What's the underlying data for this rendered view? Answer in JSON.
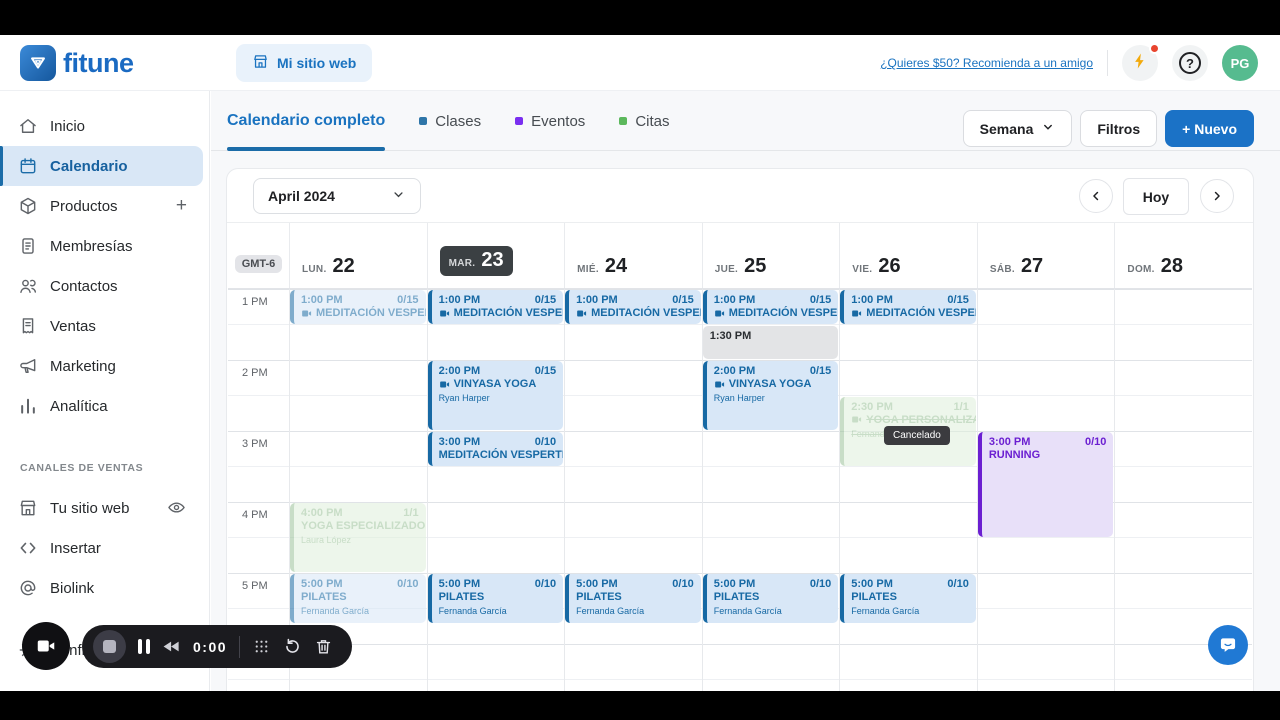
{
  "header": {
    "brand": "fitune",
    "my_site_button": "Mi sitio web",
    "referral_link": "¿Quieres $50? Recomienda a un amigo",
    "avatar": "PG"
  },
  "sidebar": {
    "items": [
      {
        "label": "Inicio",
        "icon": "home"
      },
      {
        "label": "Calendario",
        "icon": "calendar",
        "active": true
      },
      {
        "label": "Productos",
        "icon": "cube",
        "trailing": "+"
      },
      {
        "label": "Membresías",
        "icon": "membership-card"
      },
      {
        "label": "Contactos",
        "icon": "contacts"
      },
      {
        "label": "Ventas",
        "icon": "receipt"
      },
      {
        "label": "Marketing",
        "icon": "megaphone"
      },
      {
        "label": "Analítica",
        "icon": "bar-chart"
      }
    ],
    "section": "CANALES DE VENTAS",
    "channels": [
      {
        "label": "Tu sitio web",
        "icon": "storefront",
        "trailing_icon": "eye"
      },
      {
        "label": "Insertar",
        "icon": "code"
      },
      {
        "label": "Biolink",
        "icon": "at-sign"
      },
      {
        "label": "Configuración",
        "icon": "gear",
        "gap_before": true
      }
    ]
  },
  "tabs": [
    {
      "label": "Calendario completo",
      "active": true
    },
    {
      "label": "Clases",
      "dot_color": "#2e75a8"
    },
    {
      "label": "Eventos",
      "dot_color": "#7a2ef0"
    },
    {
      "label": "Citas",
      "dot_color": "#5cb85c"
    }
  ],
  "toolbar": {
    "view": "Semana",
    "filters": "Filtros",
    "new": "+ Nuevo"
  },
  "calendar": {
    "month": "April 2024",
    "today": "Hoy",
    "timezone": "GMT-6",
    "days": [
      {
        "abbr": "LUN.",
        "num": "22"
      },
      {
        "abbr": "MAR.",
        "num": "23",
        "today": true
      },
      {
        "abbr": "MIÉ.",
        "num": "24"
      },
      {
        "abbr": "JUE.",
        "num": "25"
      },
      {
        "abbr": "VIE.",
        "num": "26"
      },
      {
        "abbr": "SÁB.",
        "num": "27"
      },
      {
        "abbr": "DOM.",
        "num": "28"
      }
    ],
    "hours": [
      "1 PM",
      "2 PM",
      "3 PM",
      "4 PM",
      "5 PM"
    ],
    "cancel_tooltip": "Cancelado",
    "events": [
      {
        "day": 0,
        "start_min": 0,
        "dur_min": 30,
        "time": "1:00 PM",
        "capacity": "0/15",
        "title": "MEDITACIÓN VESPERTINA",
        "variant": "blue",
        "video": true,
        "faded": true
      },
      {
        "day": 1,
        "start_min": 0,
        "dur_min": 30,
        "time": "1:00 PM",
        "capacity": "0/15",
        "title": "MEDITACIÓN VESPERTINA",
        "variant": "blue",
        "video": true
      },
      {
        "day": 2,
        "start_min": 0,
        "dur_min": 30,
        "time": "1:00 PM",
        "capacity": "0/15",
        "title": "MEDITACIÓN VESPERTINA",
        "variant": "blue",
        "video": true
      },
      {
        "day": 3,
        "start_min": 0,
        "dur_min": 30,
        "time": "1:00 PM",
        "capacity": "0/15",
        "title": "MEDITACIÓN VESPERTINA",
        "variant": "blue",
        "video": true
      },
      {
        "day": 4,
        "start_min": 0,
        "dur_min": 30,
        "time": "1:00 PM",
        "capacity": "0/15",
        "title": "MEDITACIÓN VESPERTINA",
        "variant": "blue",
        "video": true
      },
      {
        "day": 3,
        "start_min": 30,
        "dur_min": 30,
        "time": "1:30 PM",
        "capacity": "",
        "title": "",
        "variant": "gray"
      },
      {
        "day": 1,
        "start_min": 60,
        "dur_min": 60,
        "time": "2:00 PM",
        "capacity": "0/15",
        "title": "VINYASA YOGA",
        "instructor": "Ryan Harper",
        "variant": "blue",
        "video": true
      },
      {
        "day": 3,
        "start_min": 60,
        "dur_min": 60,
        "time": "2:00 PM",
        "capacity": "0/15",
        "title": "VINYASA YOGA",
        "instructor": "Ryan Harper",
        "variant": "blue",
        "video": true
      },
      {
        "day": 4,
        "start_min": 90,
        "dur_min": 60,
        "time": "2:30 PM",
        "capacity": "1/1",
        "title": "YOGA PERSONALIZADO",
        "instructor": "Fernanda García",
        "variant": "green",
        "video": true,
        "faded": true,
        "cancelled": true
      },
      {
        "day": 1,
        "start_min": 120,
        "dur_min": 30,
        "time": "3:00 PM",
        "capacity": "0/10",
        "title": "MEDITACIÓN VESPERTINA",
        "variant": "blue"
      },
      {
        "day": 0,
        "start_min": 180,
        "dur_min": 60,
        "time": "4:00 PM",
        "capacity": "1/1",
        "title": "YOGA ESPECIALIZADO",
        "instructor": "Laura López",
        "variant": "green",
        "faded": true
      },
      {
        "day": 5,
        "start_min": 120,
        "dur_min": 90,
        "time": "3:00 PM",
        "capacity": "0/10",
        "title": "RUNNING",
        "variant": "purple"
      },
      {
        "day": 0,
        "start_min": 240,
        "dur_min": 30,
        "time": "5:00 PM",
        "capacity": "0/10",
        "title": "PILATES",
        "instructor": "Fernanda García",
        "variant": "blue",
        "faded": true
      },
      {
        "day": 1,
        "start_min": 240,
        "dur_min": 30,
        "time": "5:00 PM",
        "capacity": "0/10",
        "title": "PILATES",
        "instructor": "Fernanda García",
        "variant": "blue"
      },
      {
        "day": 2,
        "start_min": 240,
        "dur_min": 30,
        "time": "5:00 PM",
        "capacity": "0/10",
        "title": "PILATES",
        "instructor": "Fernanda García",
        "variant": "blue"
      },
      {
        "day": 3,
        "start_min": 240,
        "dur_min": 30,
        "time": "5:00 PM",
        "capacity": "0/10",
        "title": "PILATES",
        "instructor": "Fernanda García",
        "variant": "blue"
      },
      {
        "day": 4,
        "start_min": 240,
        "dur_min": 30,
        "time": "5:00 PM",
        "capacity": "0/10",
        "title": "PILATES",
        "instructor": "Fernanda García",
        "variant": "blue"
      }
    ]
  },
  "media_controls": {
    "timer": "0:00"
  },
  "colors": {
    "brand_blue": "#1a6ac2",
    "accent_blue": "#1b72c6",
    "tab_underline": "#1b6ca8",
    "event_blue_bg": "#d8e7f7",
    "event_blue_text": "#1769a4",
    "event_green_bg": "#dff0db",
    "event_purple": "#5b16c9",
    "event_gray_bg": "#e3e4e6",
    "today_pill": "#3b4043",
    "avatar_green": "#56bb8f",
    "notification_red": "#e8442e",
    "lightning_yellow": "#f2aa0d"
  }
}
